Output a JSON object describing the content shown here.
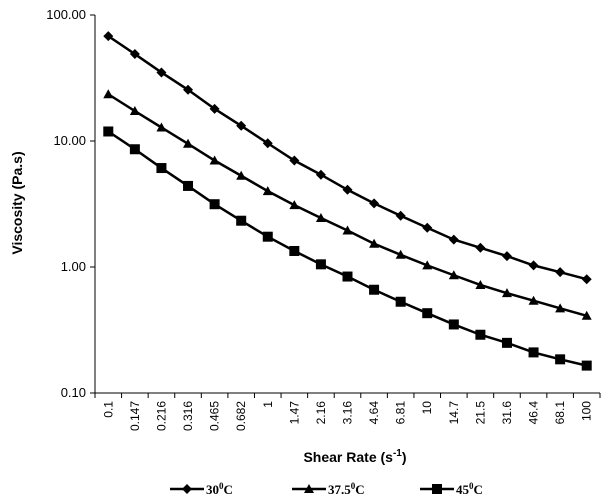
{
  "chart_data": {
    "type": "line",
    "title": "",
    "xlabel": "Shear Rate (s-1)",
    "xlabel_parts": {
      "base": "Shear Rate (s",
      "sup": "-1",
      "tail": ")"
    },
    "ylabel": "Viscosity (Pa.s)",
    "y_scale": "log",
    "ylim": [
      0.1,
      100
    ],
    "y_ticks": [
      "0.10",
      "1.00",
      "10.00",
      "100.00"
    ],
    "categories": [
      "0.1",
      "0.147",
      "0.216",
      "0.316",
      "0.465",
      "0.682",
      "1",
      "1.47",
      "2.16",
      "3.16",
      "4.64",
      "6.81",
      "10",
      "14.7",
      "21.5",
      "31.6",
      "46.4",
      "68.1",
      "100"
    ],
    "grid": false,
    "legend_position": "bottom",
    "series": [
      {
        "name": "30⁰C",
        "name_parts": {
          "base": "30",
          "sup": "0",
          "tail": "C"
        },
        "marker": "diamond",
        "color": "#000000",
        "values": [
          68,
          49,
          35,
          25.5,
          18,
          13.2,
          9.6,
          7.0,
          5.4,
          4.1,
          3.2,
          2.55,
          2.05,
          1.65,
          1.42,
          1.22,
          1.03,
          0.91,
          0.8
        ]
      },
      {
        "name": "37.5⁰C",
        "name_parts": {
          "base": "37.5",
          "sup": "0",
          "tail": "C"
        },
        "marker": "triangle",
        "color": "#000000",
        "values": [
          23.5,
          17.3,
          12.8,
          9.5,
          7.0,
          5.3,
          4.0,
          3.1,
          2.45,
          1.95,
          1.53,
          1.25,
          1.03,
          0.86,
          0.72,
          0.62,
          0.54,
          0.47,
          0.41
        ]
      },
      {
        "name": "45⁰C",
        "name_parts": {
          "base": "45",
          "sup": "0",
          "tail": "C"
        },
        "marker": "square",
        "color": "#000000",
        "values": [
          11.9,
          8.6,
          6.1,
          4.4,
          3.15,
          2.33,
          1.74,
          1.34,
          1.05,
          0.84,
          0.66,
          0.53,
          0.43,
          0.35,
          0.29,
          0.25,
          0.21,
          0.185,
          0.165
        ]
      }
    ]
  }
}
